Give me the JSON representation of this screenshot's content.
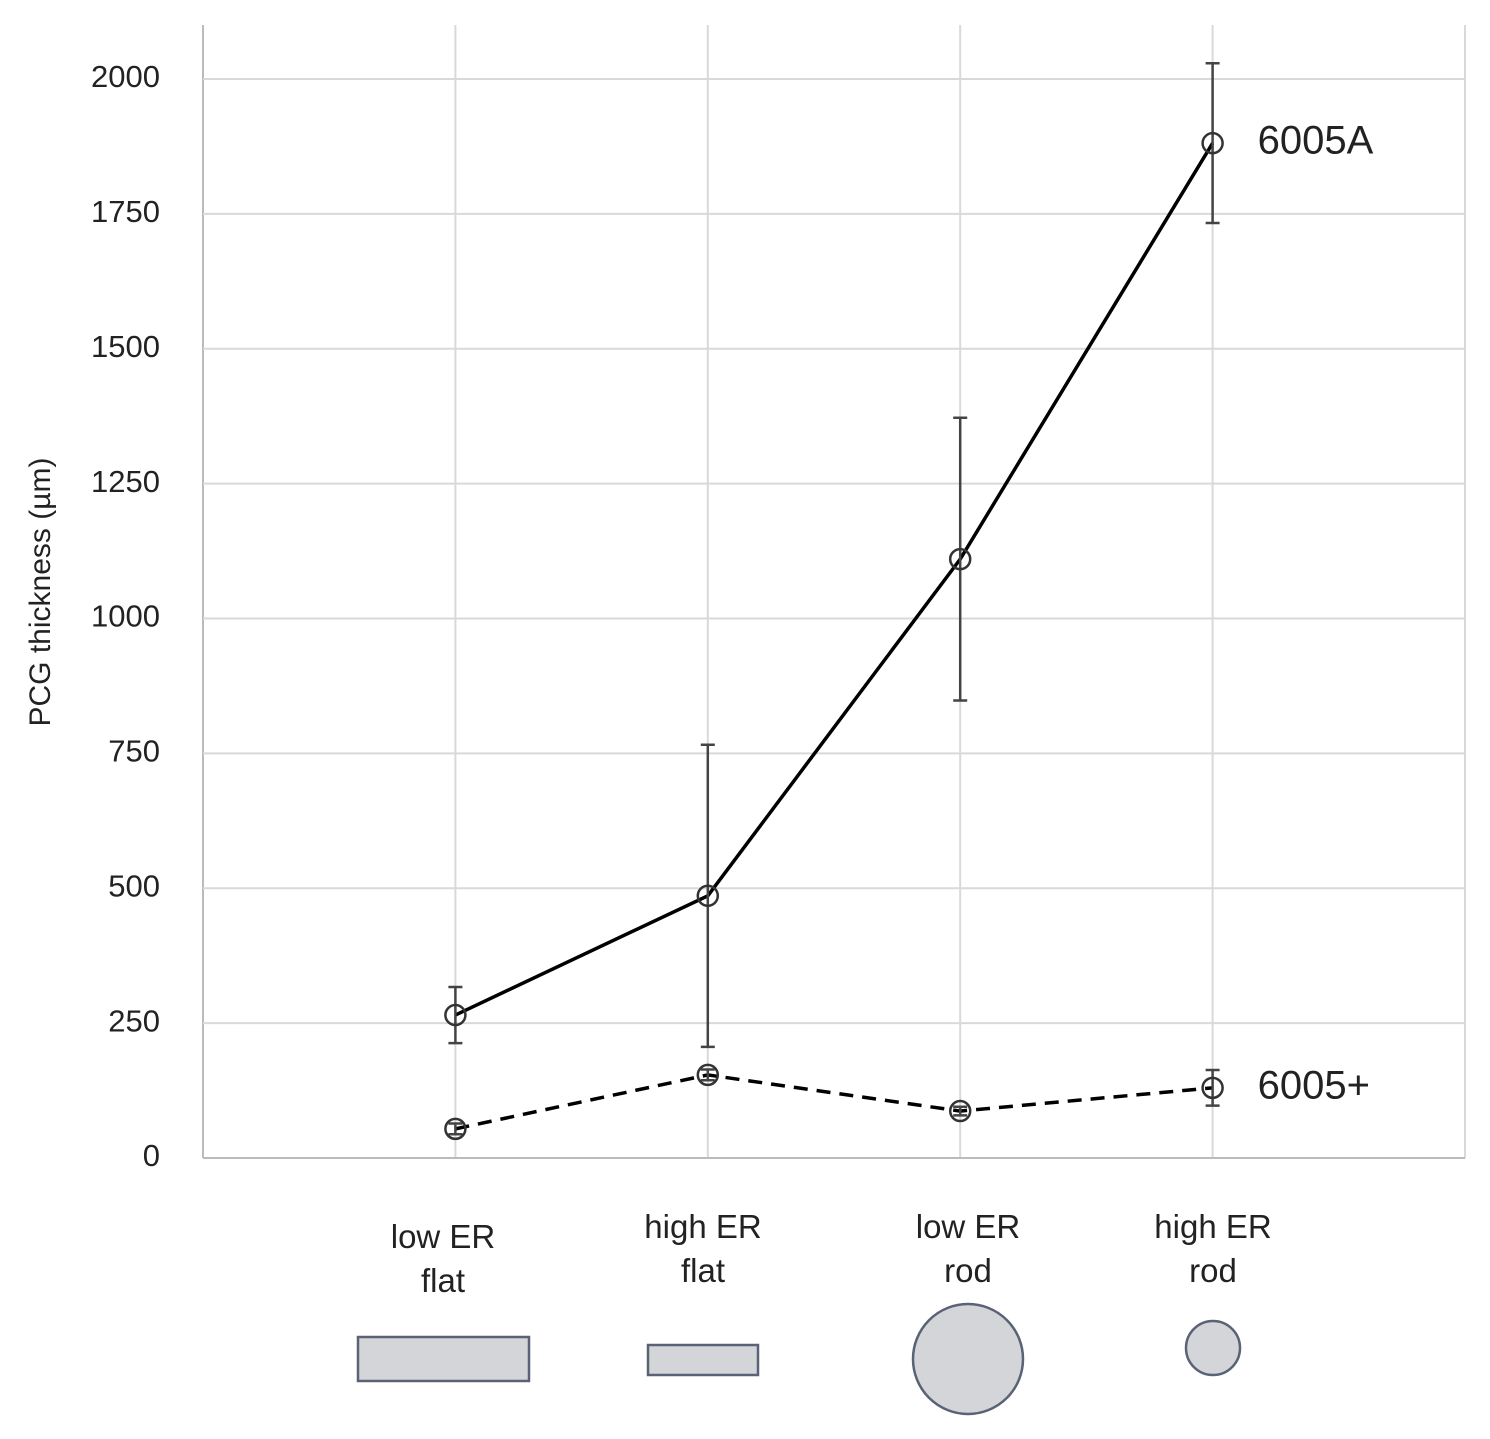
{
  "chart_data": {
    "type": "line",
    "y_label": "PCG thickness (µm)",
    "categories": [
      "low ER\nflat",
      "high ER\nflat",
      "low ER\nrod",
      "high ER\nrod"
    ],
    "series": [
      {
        "name": "6005A",
        "color": "#000000",
        "dashed": false,
        "values": [
          265,
          486,
          1110,
          1881
        ],
        "errors": [
          52,
          280,
          262,
          148
        ]
      },
      {
        "name": "6005+",
        "color": "#000000",
        "dashed": true,
        "values": [
          54,
          154,
          87,
          130
        ],
        "errors": [
          10,
          10,
          8,
          33
        ]
      }
    ],
    "ylim": [
      0,
      2100
    ],
    "yticks": [
      0,
      250,
      500,
      750,
      1000,
      1250,
      1500,
      1750,
      2000
    ],
    "grid": true
  }
}
